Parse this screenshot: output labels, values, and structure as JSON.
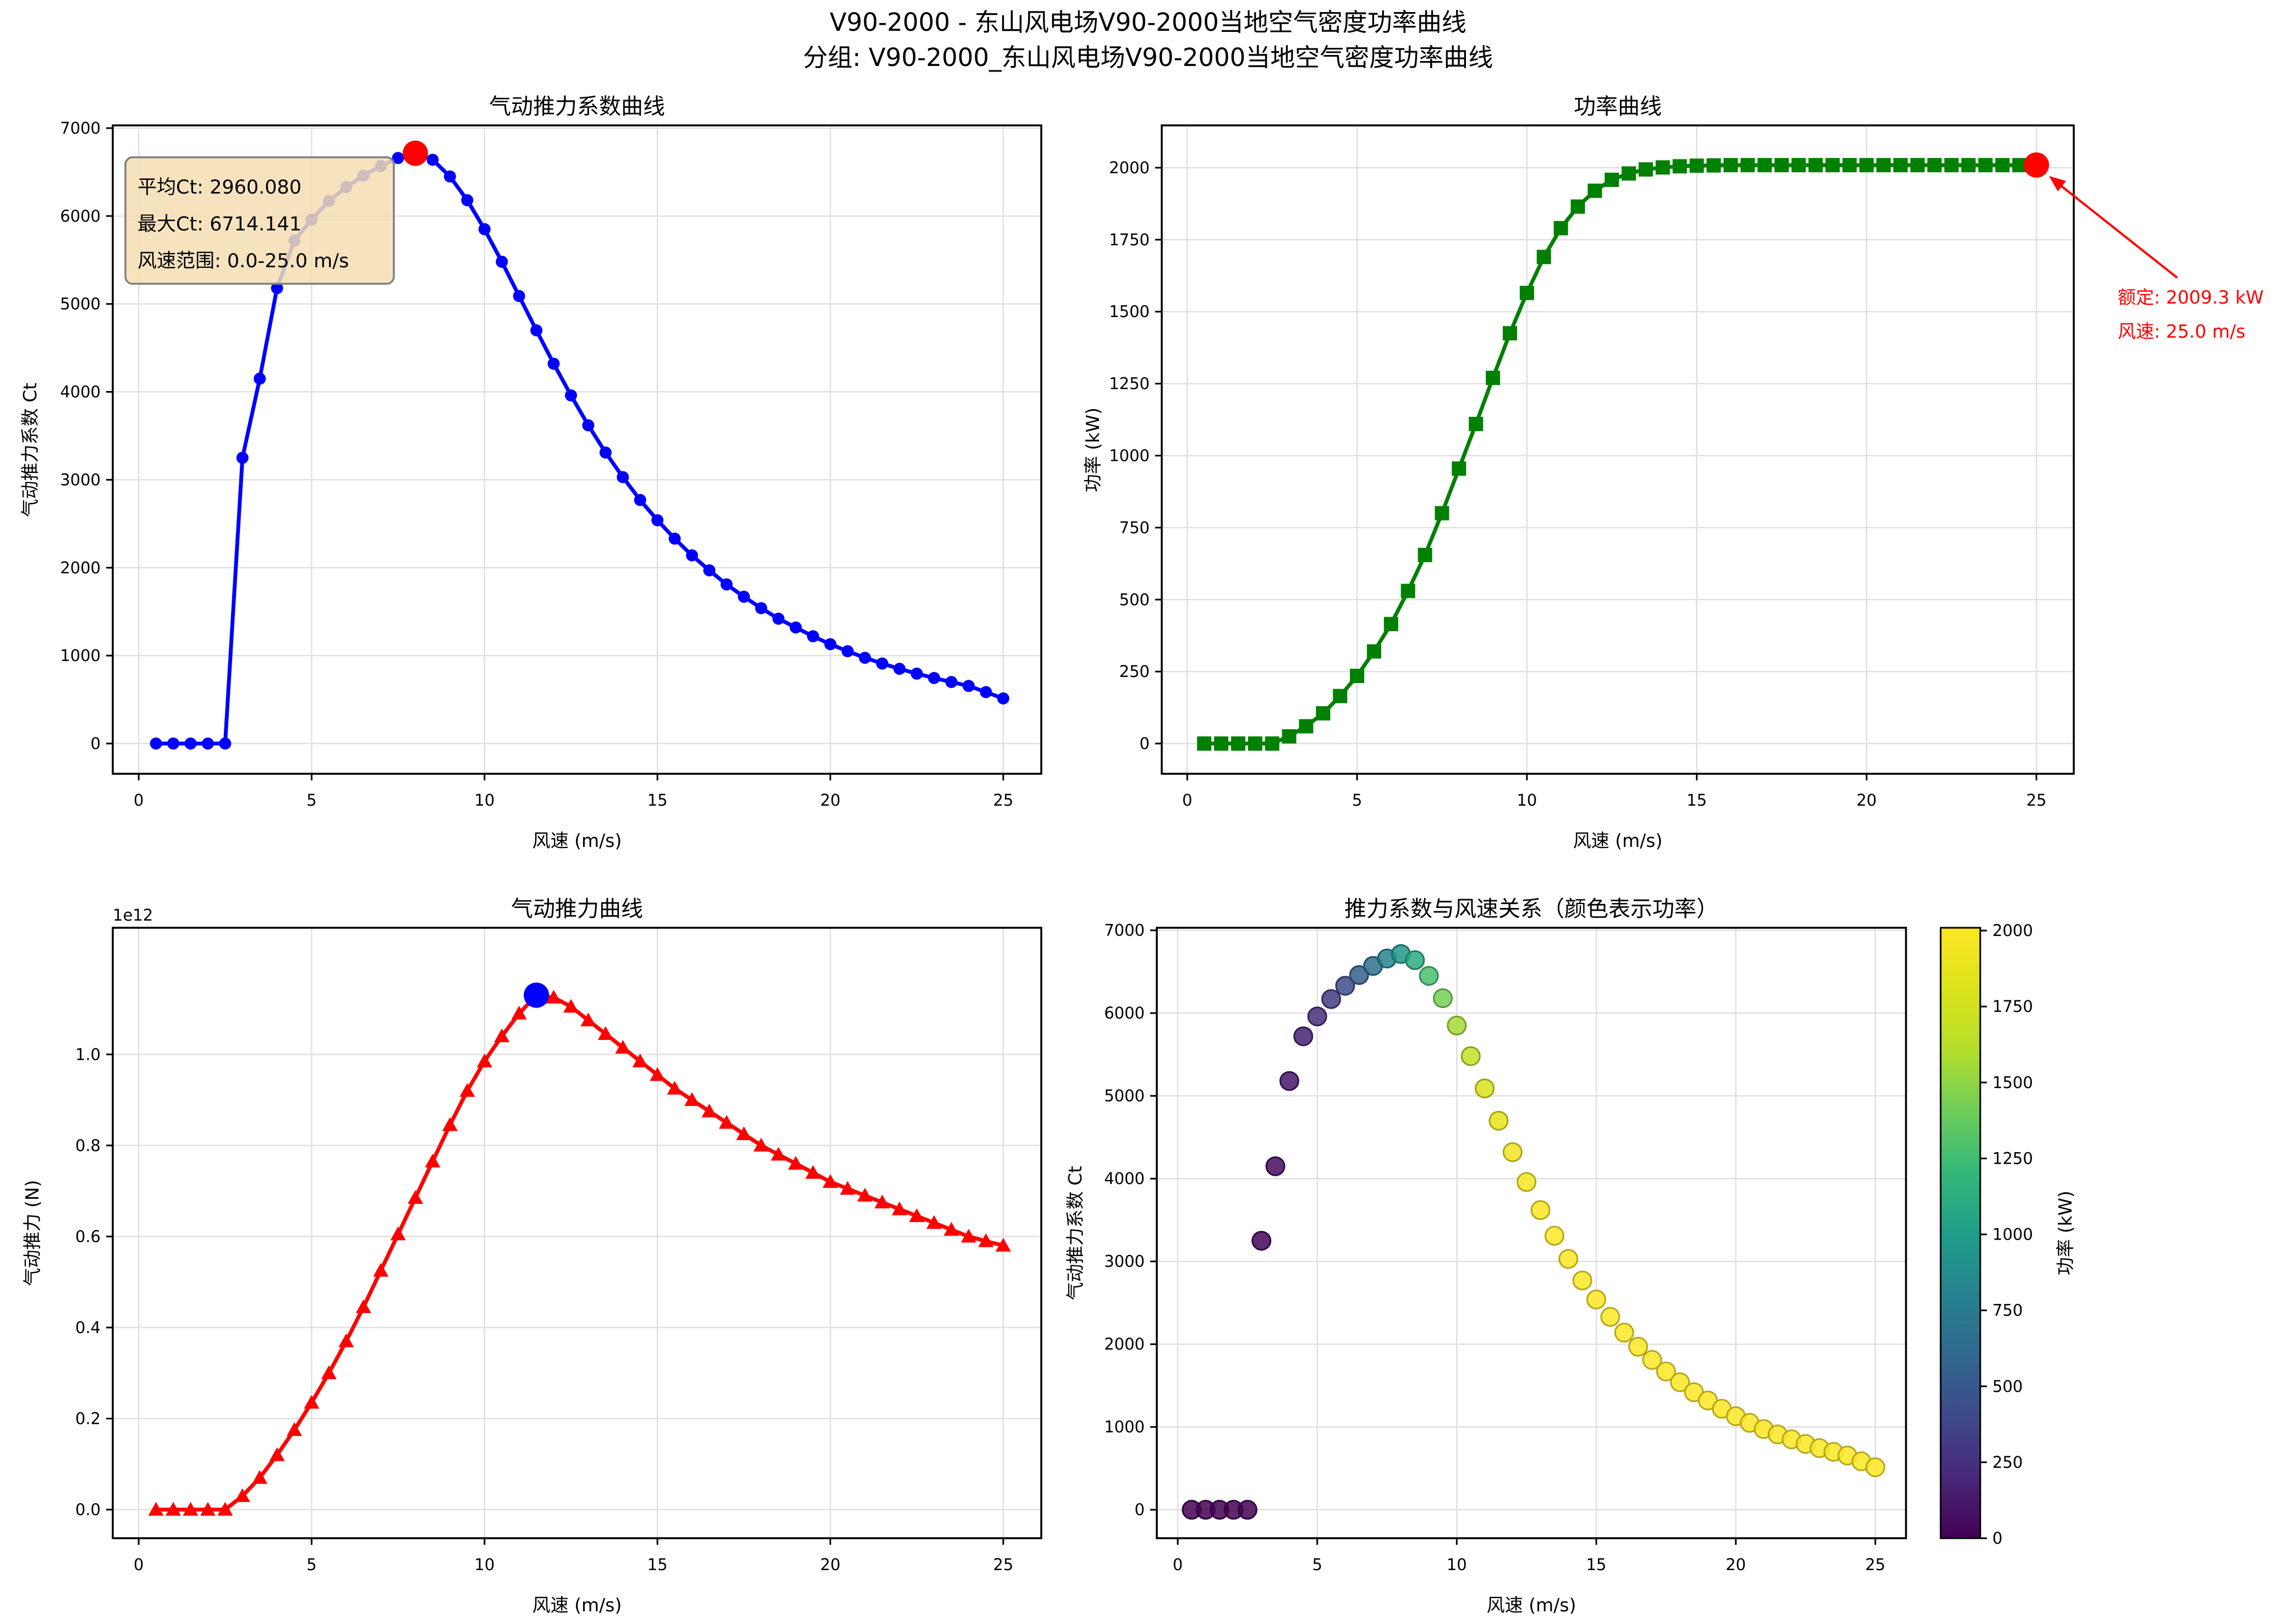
{
  "suptitle": {
    "line1": "V90-2000 - 东山风电场V90-2000当地空气密度功率曲线",
    "line2": "分组: V90-2000_东山风电场V90-2000当地空气密度功率曲线"
  },
  "annotations": {
    "stats_box": {
      "line1": "平均Ct: 2960.080",
      "line2": "最大Ct: 6714.141",
      "line3": "风速范围: 0.0-25.0 m/s",
      "bg_color": "#f5deb3",
      "border_color": "#808080"
    },
    "rated_label": {
      "line1": "额定: 2009.3 kW",
      "line2": "风速: 25.0 m/s",
      "color": "#ff0000"
    }
  },
  "chart_data": [
    {
      "id": "ct",
      "type": "line",
      "title": "气动推力系数曲线",
      "xlabel": "风速 (m/s)",
      "ylabel": "气动推力系数 Ct",
      "color": "#0000ff",
      "marker": "circle",
      "grid": true,
      "xlim": [
        -0.75,
        26.1
      ],
      "ylim": [
        -344,
        7031
      ],
      "xticks": [
        0,
        5,
        10,
        15,
        20,
        25
      ],
      "yticks": [
        0,
        1000,
        2000,
        3000,
        4000,
        5000,
        6000,
        7000
      ],
      "ytick_decimals": 0,
      "x": [
        0.5,
        1,
        1.5,
        2,
        2.5,
        3,
        3.5,
        4,
        4.5,
        5,
        5.5,
        6,
        6.5,
        7,
        7.5,
        8,
        8.5,
        9,
        9.5,
        10,
        10.5,
        11,
        11.5,
        12,
        12.5,
        13,
        13.5,
        14,
        14.5,
        15,
        15.5,
        16,
        16.5,
        17,
        17.5,
        18,
        18.5,
        19,
        19.5,
        20,
        20.5,
        21,
        21.5,
        22,
        22.5,
        23,
        23.5,
        24,
        24.5,
        25
      ],
      "values": [
        0,
        0,
        0,
        0,
        0,
        3250,
        4150,
        5180,
        5720,
        5960,
        6170,
        6330,
        6460,
        6570,
        6660,
        6714.1,
        6640,
        6450,
        6180,
        5850,
        5480,
        5090,
        4700,
        4320,
        3960,
        3620,
        3310,
        3030,
        2770,
        2540,
        2330,
        2140,
        1970,
        1810,
        1670,
        1540,
        1420,
        1320,
        1220,
        1130,
        1050,
        975,
        910,
        850,
        795,
        745,
        700,
        655,
        585,
        513
      ],
      "mean_ct": 2960.08,
      "max_ct": 6714.141,
      "wind_range": "0.0-25.0 m/s",
      "highlight": {
        "x": 8.0,
        "y": 6714.141,
        "color": "#ff0000"
      }
    },
    {
      "id": "power",
      "type": "line",
      "title": "功率曲线",
      "xlabel": "风速 (m/s)",
      "ylabel": "功率 (kW)",
      "color": "#008000",
      "marker": "square",
      "grid": true,
      "xlim": [
        -0.75,
        26.1
      ],
      "ylim": [
        -105,
        2147
      ],
      "xticks": [
        0,
        5,
        10,
        15,
        20,
        25
      ],
      "yticks": [
        0,
        250,
        500,
        750,
        1000,
        1250,
        1500,
        1750,
        2000
      ],
      "ytick_decimals": 0,
      "x": [
        0.5,
        1,
        1.5,
        2,
        2.5,
        3,
        3.5,
        4,
        4.5,
        5,
        5.5,
        6,
        6.5,
        7,
        7.5,
        8,
        8.5,
        9,
        9.5,
        10,
        10.5,
        11,
        11.5,
        12,
        12.5,
        13,
        13.5,
        14,
        14.5,
        15,
        15.5,
        16,
        16.5,
        17,
        17.5,
        18,
        18.5,
        19,
        19.5,
        20,
        20.5,
        21,
        21.5,
        22,
        22.5,
        23,
        23.5,
        24,
        24.5,
        25
      ],
      "values": [
        0,
        0,
        0,
        0,
        0,
        25,
        60,
        105,
        165,
        235,
        320,
        415,
        530,
        655,
        800,
        955,
        1110,
        1270,
        1425,
        1565,
        1690,
        1790,
        1865,
        1920,
        1958,
        1980,
        1994,
        2001,
        2005,
        2007,
        2008,
        2009,
        2009,
        2009,
        2009,
        2009,
        2009,
        2009,
        2009,
        2009,
        2009,
        2009,
        2009,
        2009,
        2009,
        2009,
        2009,
        2009,
        2009,
        2009.3
      ],
      "rated_power_kw": 2009.3,
      "rated_wind_ms": 25.0,
      "highlight": {
        "x": 25.0,
        "y": 2009.3,
        "color": "#ff0000"
      }
    },
    {
      "id": "thrust",
      "type": "line",
      "title": "气动推力曲线",
      "xlabel": "风速 (m/s)",
      "ylabel": "气动推力 (N)",
      "color": "#ff0000",
      "marker": "triangle",
      "grid": true,
      "offset_text": "1e12",
      "units_scale": "1e12 N",
      "xlim": [
        -0.75,
        26.1
      ],
      "ylim": [
        -0.0628,
        1.2782
      ],
      "xticks": [
        0,
        5,
        10,
        15,
        20,
        25
      ],
      "yticks": [
        0.0,
        0.2,
        0.4,
        0.6,
        0.8,
        1.0
      ],
      "ytick_decimals": 1,
      "x": [
        0.5,
        1,
        1.5,
        2,
        2.5,
        3,
        3.5,
        4,
        4.5,
        5,
        5.5,
        6,
        6.5,
        7,
        7.5,
        8,
        8.5,
        9,
        9.5,
        10,
        10.5,
        11,
        11.5,
        12,
        12.5,
        13,
        13.5,
        14,
        14.5,
        15,
        15.5,
        16,
        16.5,
        17,
        17.5,
        18,
        18.5,
        19,
        19.5,
        20,
        20.5,
        21,
        21.5,
        22,
        22.5,
        23,
        23.5,
        24,
        24.5,
        25
      ],
      "values": [
        0,
        0,
        0,
        0,
        0,
        0.03,
        0.07,
        0.12,
        0.175,
        0.235,
        0.3,
        0.37,
        0.445,
        0.525,
        0.605,
        0.685,
        0.765,
        0.845,
        0.92,
        0.985,
        1.04,
        1.09,
        1.13,
        1.125,
        1.105,
        1.075,
        1.045,
        1.015,
        0.985,
        0.955,
        0.925,
        0.9,
        0.875,
        0.85,
        0.825,
        0.8,
        0.78,
        0.76,
        0.74,
        0.72,
        0.705,
        0.69,
        0.675,
        0.66,
        0.645,
        0.63,
        0.615,
        0.6,
        0.59,
        0.58
      ],
      "highlight": {
        "x": 11.5,
        "y": 1.13,
        "color": "#0000ff"
      }
    },
    {
      "id": "scatter",
      "type": "scatter",
      "title": "推力系数与风速关系（颜色表示功率）",
      "xlabel": "风速 (m/s)",
      "ylabel": "气动推力系数 Ct",
      "colormap": "viridis",
      "grid": true,
      "xlim": [
        -0.75,
        26.1
      ],
      "ylim": [
        -344,
        7031
      ],
      "xticks": [
        0,
        5,
        10,
        15,
        20,
        25
      ],
      "yticks": [
        0,
        1000,
        2000,
        3000,
        4000,
        5000,
        6000,
        7000
      ],
      "ytick_decimals": 0,
      "x": [
        0.5,
        1,
        1.5,
        2,
        2.5,
        3,
        3.5,
        4,
        4.5,
        5,
        5.5,
        6,
        6.5,
        7,
        7.5,
        8,
        8.5,
        9,
        9.5,
        10,
        10.5,
        11,
        11.5,
        12,
        12.5,
        13,
        13.5,
        14,
        14.5,
        15,
        15.5,
        16,
        16.5,
        17,
        17.5,
        18,
        18.5,
        19,
        19.5,
        20,
        20.5,
        21,
        21.5,
        22,
        22.5,
        23,
        23.5,
        24,
        24.5,
        25
      ],
      "values": [
        0,
        0,
        0,
        0,
        0,
        3250,
        4150,
        5180,
        5720,
        5960,
        6170,
        6330,
        6460,
        6570,
        6660,
        6714.1,
        6640,
        6450,
        6180,
        5850,
        5480,
        5090,
        4700,
        4320,
        3960,
        3620,
        3310,
        3030,
        2770,
        2540,
        2330,
        2140,
        1970,
        1810,
        1670,
        1540,
        1420,
        1320,
        1220,
        1130,
        1050,
        975,
        910,
        850,
        795,
        745,
        700,
        655,
        585,
        513
      ],
      "color_values": [
        0,
        0,
        0,
        0,
        0,
        25,
        60,
        105,
        165,
        235,
        320,
        415,
        530,
        655,
        800,
        955,
        1110,
        1270,
        1425,
        1565,
        1690,
        1790,
        1865,
        1920,
        1958,
        1980,
        1994,
        2001,
        2005,
        2007,
        2008,
        2009,
        2009,
        2009,
        2009,
        2009,
        2009,
        2009,
        2009,
        2009,
        2009,
        2009,
        2009,
        2009,
        2009,
        2009,
        2009,
        2009,
        2009,
        2009.3
      ],
      "vmin": 0,
      "vmax": 2009.3,
      "colorbar": {
        "ticks": [
          0,
          250,
          500,
          750,
          1000,
          1250,
          1500,
          1750,
          2000
        ],
        "label": "功率 (kW)"
      }
    }
  ]
}
